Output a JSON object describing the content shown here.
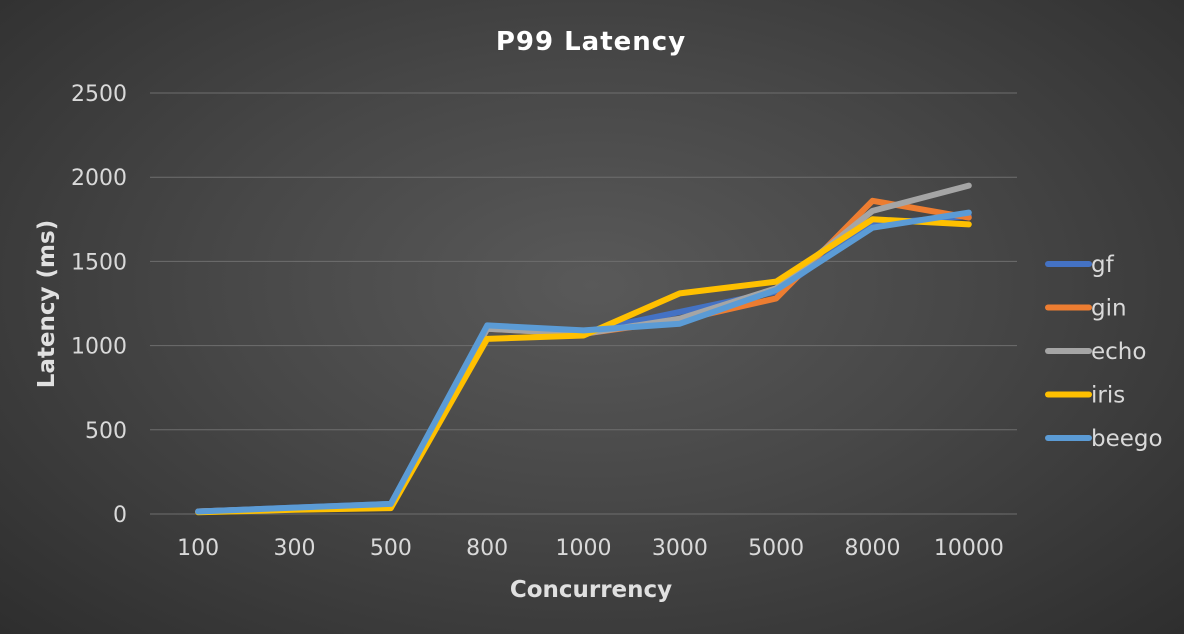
{
  "chart_data": {
    "type": "line",
    "title": "P99 Latency",
    "xlabel": "Concurrency",
    "ylabel": "Latency (ms)",
    "ylim": [
      0,
      2500
    ],
    "yticks": [
      "0",
      "500",
      "1000",
      "1500",
      "2000",
      "2500"
    ],
    "categories": [
      "100",
      "300",
      "500",
      "800",
      "1000",
      "3000",
      "5000",
      "8000",
      "10000"
    ],
    "grid": true,
    "legend_position": "right",
    "series": [
      {
        "name": "gf",
        "color": "#4472c4",
        "values": [
          15,
          38,
          60,
          1110,
          1080,
          1200,
          1320,
          1720,
          1770
        ]
      },
      {
        "name": "gin",
        "color": "#ed7d31",
        "values": [
          15,
          35,
          55,
          1100,
          1070,
          1150,
          1280,
          1860,
          1760
        ]
      },
      {
        "name": "echo",
        "color": "#a5a5a5",
        "values": [
          15,
          35,
          55,
          1100,
          1070,
          1160,
          1340,
          1800,
          1950
        ]
      },
      {
        "name": "iris",
        "color": "#ffc000",
        "values": [
          10,
          25,
          35,
          1040,
          1060,
          1310,
          1380,
          1750,
          1720
        ]
      },
      {
        "name": "beego",
        "color": "#5b9bd5",
        "values": [
          15,
          38,
          60,
          1120,
          1090,
          1130,
          1330,
          1700,
          1790
        ]
      }
    ]
  }
}
